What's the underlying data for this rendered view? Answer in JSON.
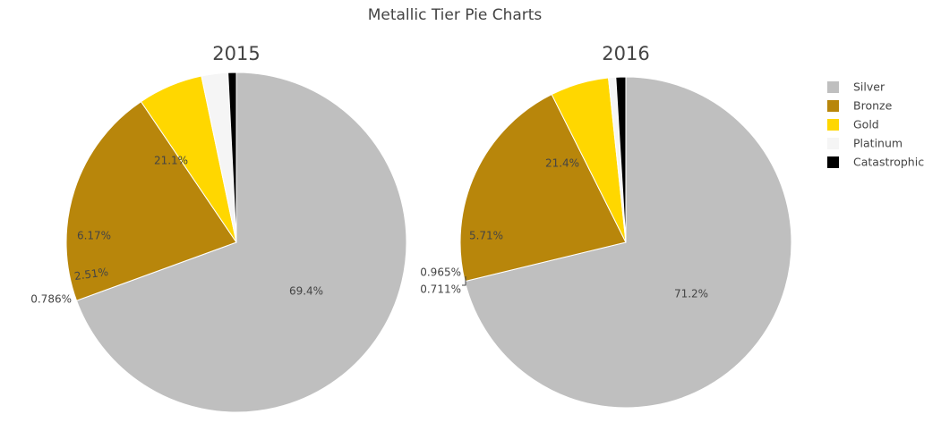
{
  "title": "Metallic Tier Pie Charts",
  "legend": [
    {
      "name": "Silver",
      "color": "#bfbfbf"
    },
    {
      "name": "Bronze",
      "color": "#b8860b"
    },
    {
      "name": "Gold",
      "color": "#ffd700"
    },
    {
      "name": "Platinum",
      "color": "#f5f5f5"
    },
    {
      "name": "Catastrophic",
      "color": "#000000"
    }
  ],
  "chart_data": [
    {
      "type": "pie",
      "title": "2015",
      "labels": [
        "Silver",
        "Bronze",
        "Gold",
        "Platinum",
        "Catastrophic"
      ],
      "values": [
        69.4,
        21.1,
        6.17,
        2.51,
        0.786
      ],
      "text": [
        "69.4%",
        "21.1%",
        "6.17%",
        "2.51%",
        "0.786%"
      ],
      "colors": [
        "#bfbfbf",
        "#b8860b",
        "#ffd700",
        "#f5f5f5",
        "#000000"
      ],
      "direction": "clockwise",
      "sort": false
    },
    {
      "type": "pie",
      "title": "2016",
      "labels": [
        "Silver",
        "Bronze",
        "Gold",
        "Platinum",
        "Catastrophic"
      ],
      "values": [
        71.2,
        21.4,
        5.71,
        0.711,
        0.965
      ],
      "text": [
        "71.2%",
        "21.4%",
        "5.71%",
        "0.711%",
        "0.965%"
      ],
      "colors": [
        "#bfbfbf",
        "#b8860b",
        "#ffd700",
        "#f5f5f5",
        "#000000"
      ],
      "direction": "clockwise",
      "sort": false
    }
  ]
}
